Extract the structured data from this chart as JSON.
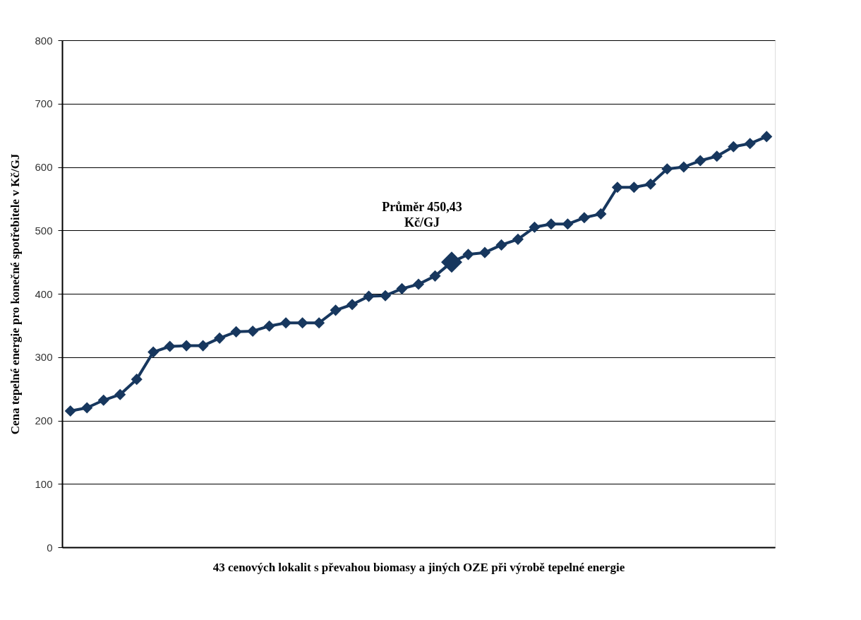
{
  "chart_data": {
    "type": "line",
    "xlabel": "43 cenových lokalit s převahou biomasy a jiných OZE při výrobě tepelné energie",
    "ylabel": "Cena tepelné energie pro konečné spotřebitele v Kč/GJ",
    "categories": [
      null,
      null,
      null,
      null,
      null,
      null,
      null,
      null,
      null,
      null,
      null,
      null,
      null,
      null,
      null,
      null,
      null,
      null,
      null,
      null,
      null,
      null,
      null,
      null,
      null,
      null,
      null,
      null,
      null,
      null,
      null,
      null,
      null,
      null,
      null,
      null,
      null,
      null,
      null,
      null,
      null,
      null,
      null
    ],
    "series": [
      {
        "color": "#17375e",
        "marker": "diamond",
        "values": [
          215,
          220,
          232,
          241,
          265,
          308,
          317,
          318,
          318,
          330,
          340,
          341,
          349,
          354,
          354,
          354,
          374,
          383,
          396,
          397,
          408,
          415,
          428,
          450,
          462,
          465,
          477,
          486,
          505,
          510,
          510,
          520,
          526,
          568,
          568,
          573,
          597,
          600,
          610,
          617,
          632,
          637,
          648
        ]
      },
      {
        "type": "scatter",
        "color": "#17375e",
        "marker": "diamond",
        "values": [
          null,
          null,
          null,
          null,
          null,
          null,
          null,
          null,
          null,
          null,
          null,
          null,
          null,
          null,
          null,
          null,
          null,
          null,
          null,
          null,
          null,
          null,
          null,
          450,
          null,
          null,
          null,
          null,
          null,
          null,
          null,
          null,
          null,
          null,
          null,
          null,
          null,
          null,
          null,
          null,
          null,
          null,
          null
        ]
      }
    ],
    "annotations": [
      "Průměr 450,43 Kč/GJ"
    ],
    "ylim": [
      0,
      800
    ],
    "yticks": [
      0,
      100,
      200,
      300,
      400,
      500,
      600,
      700,
      800
    ],
    "grid": "y",
    "legend": false,
    "tick_labels": "y"
  }
}
